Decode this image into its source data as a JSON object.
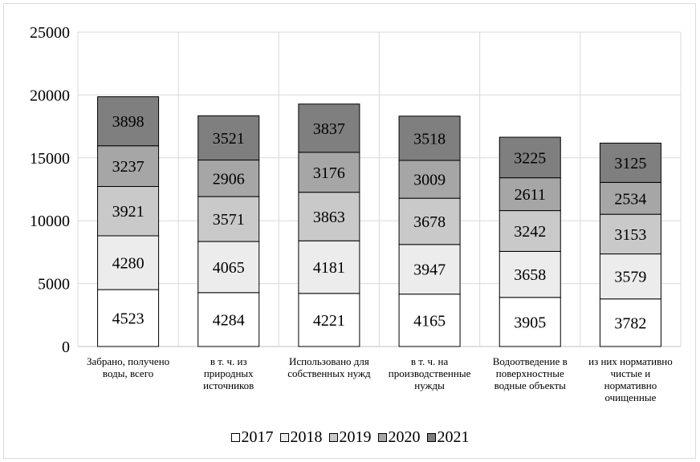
{
  "chart_data": {
    "type": "bar",
    "stacked": true,
    "title": "",
    "xlabel": "",
    "ylabel": "",
    "ylim": [
      0,
      25000
    ],
    "yticks": [
      "0",
      "5000",
      "10000",
      "15000",
      "20000",
      "25000"
    ],
    "grid": true,
    "legend_position": "bottom",
    "categories": [
      [
        "Забрано, получено",
        "воды, всего"
      ],
      [
        "в т. ч. из",
        "природных",
        "источников"
      ],
      [
        "Использовано для",
        "собственных нужд"
      ],
      [
        "в т. ч. на",
        "производственные",
        "нужды"
      ],
      [
        "Водоотведение в",
        "поверхностные",
        "водные объекты"
      ],
      [
        "из них нормативно",
        "чистые и",
        "нормативно",
        "очищенные"
      ]
    ],
    "series": [
      {
        "name": "2017",
        "color": "#ffffff",
        "values": [
          4523,
          4284,
          4221,
          4165,
          3905,
          3782
        ]
      },
      {
        "name": "2018",
        "color": "#ececec",
        "values": [
          4280,
          4065,
          4181,
          3947,
          3658,
          3579
        ]
      },
      {
        "name": "2019",
        "color": "#c9c9c9",
        "values": [
          3921,
          3571,
          3863,
          3678,
          3242,
          3153
        ]
      },
      {
        "name": "2020",
        "color": "#a6a6a6",
        "values": [
          3237,
          2906,
          3176,
          3009,
          2611,
          2534
        ]
      },
      {
        "name": "2021",
        "color": "#7f7f7f",
        "values": [
          3898,
          3521,
          3837,
          3518,
          3225,
          3125
        ]
      }
    ]
  }
}
